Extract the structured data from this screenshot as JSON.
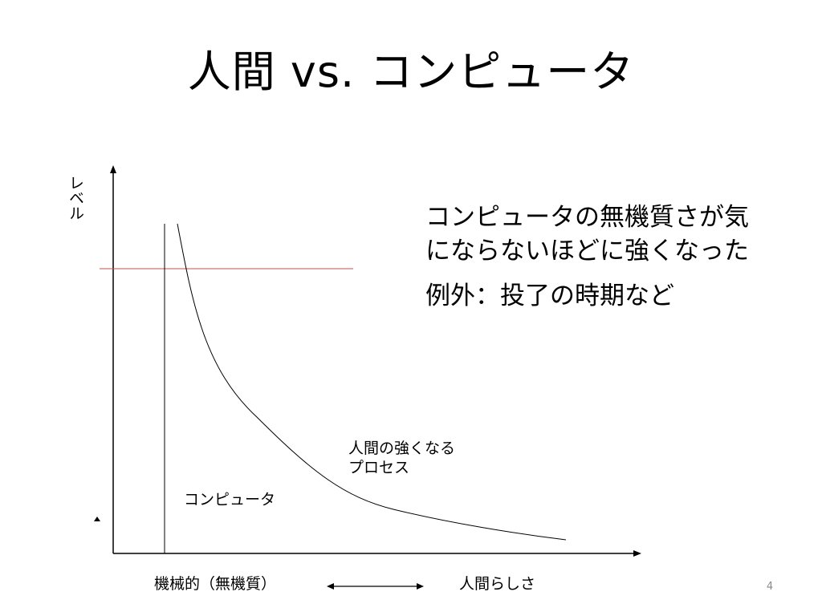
{
  "slide": {
    "title": "人間 vs. コンピュータ",
    "page_number": "4"
  },
  "diagram": {
    "y_axis_label": "レベル",
    "callout": {
      "line1": "コンピュータの無機質さが気にならないほどに強くなった",
      "line2": "例外：投了の時期など"
    },
    "curve_label": "人間の強くなるプロセス",
    "computer_label": "コンピュータ",
    "x_axis_left_label": "機械的（無機質）",
    "x_axis_right_label": "人間らしさ",
    "colors": {
      "axis": "#000000",
      "threshold_line": "#c0504d",
      "page_number": "#8a8a8a"
    }
  }
}
